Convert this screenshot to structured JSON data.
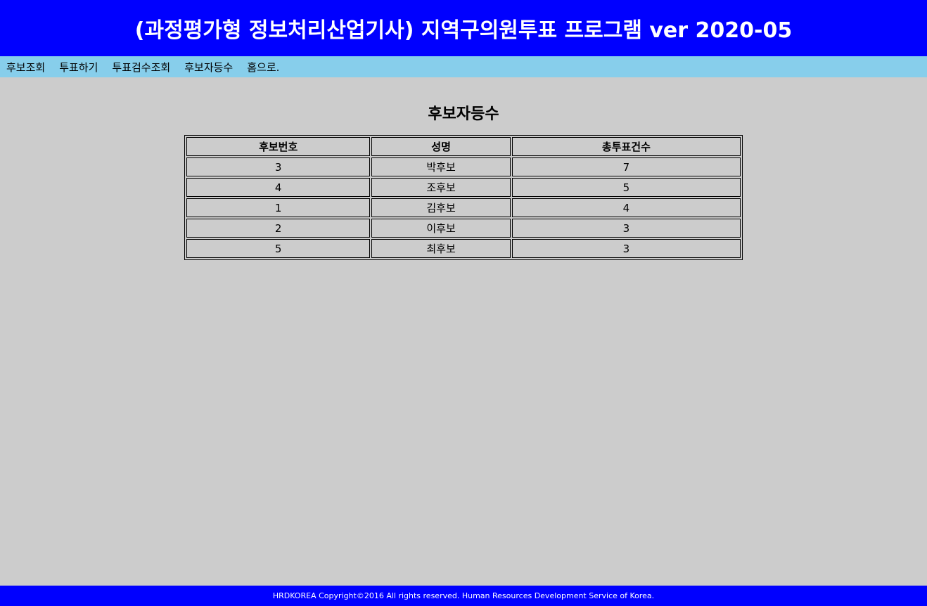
{
  "header": {
    "title": "(과정평가형 정보처리산업기사) 지역구의원투표 프로그램 ver 2020-05"
  },
  "nav": {
    "items": [
      {
        "label": "후보조회"
      },
      {
        "label": "투표하기"
      },
      {
        "label": "투표검수조회"
      },
      {
        "label": "후보자등수"
      },
      {
        "label": "홈으로."
      }
    ]
  },
  "main": {
    "title": "후보자등수",
    "table": {
      "headers": [
        "후보번호",
        "성명",
        "총투표건수"
      ],
      "rows": [
        [
          "3",
          "박후보",
          "7"
        ],
        [
          "4",
          "조후보",
          "5"
        ],
        [
          "1",
          "김후보",
          "4"
        ],
        [
          "2",
          "이후보",
          "3"
        ],
        [
          "5",
          "최후보",
          "3"
        ]
      ]
    }
  },
  "footer": {
    "text": "HRDKOREA Copyright©2016 All rights reserved. Human Resources Development Service of Korea."
  },
  "colors": {
    "header_bg": "#0000ff",
    "nav_bg": "#87ceeb",
    "main_bg": "#cccccc"
  }
}
